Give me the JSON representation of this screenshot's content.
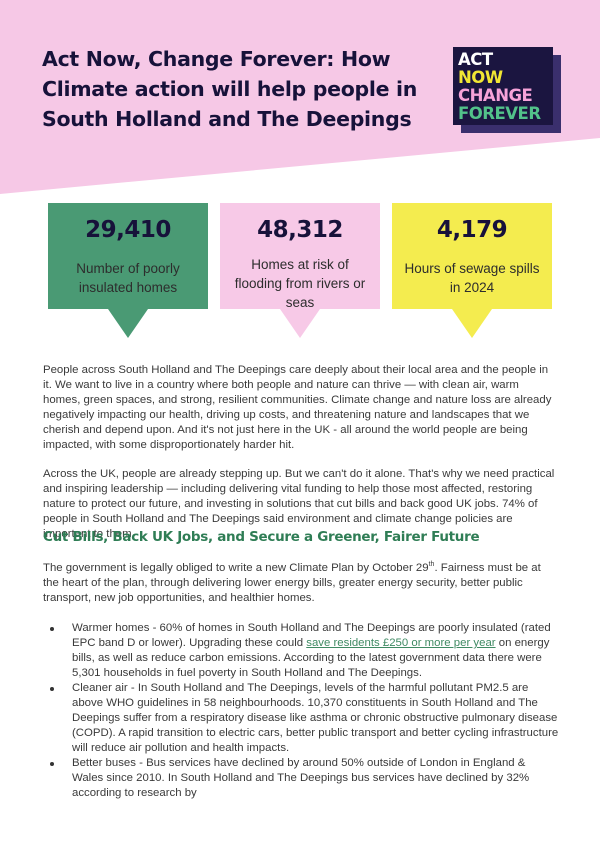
{
  "colors": {
    "pink_band": "#f6c8e6",
    "navy": "#17123a",
    "green_card": "#4a9a74",
    "pink_card": "#f7c9e7",
    "yellow_card": "#f4ec4f",
    "heading_green": "#2f7d55",
    "logo_white": "#ffffff",
    "logo_yellow": "#f1e634",
    "logo_pink": "#f6a2d9",
    "logo_green": "#52c28a"
  },
  "header": {
    "title": "Act Now, Change Forever: How Climate action will help people in South Holland and The Deepings"
  },
  "logo": {
    "line1": "ACT",
    "line2": "NOW",
    "line3": "CHANGE",
    "line4": "FOREVER"
  },
  "stats": [
    {
      "number": "29,410",
      "label": "Number of poorly insulated homes"
    },
    {
      "number": "48,312",
      "label": "Homes at risk of flooding from rivers or seas"
    },
    {
      "number": "4,179",
      "label": "Hours of sewage spills in 2024"
    }
  ],
  "intro": {
    "p1": "People across South Holland and The Deepings care deeply about their local area and the people in it. We want to live in a country where both people and nature can thrive — with clean air, warm homes, green spaces, and strong, resilient communities. Climate change and nature loss are already negatively impacting our health, driving up costs, and threatening nature and landscapes that we cherish and depend upon. And it's not just here in the UK - all around the world people are being impacted, with some disproportionately harder hit.",
    "p2": "Across the UK, people are already stepping up. But we can't do it alone. That's why we need practical and inspiring leadership — including delivering vital funding to help those most affected, restoring nature to protect our future, and investing in solutions that cut bills and back good UK jobs. 74% of people in South Holland and The Deepings said environment and climate change policies are important to them."
  },
  "section": {
    "heading": "Cut Bills, Back UK Jobs, and Secure a Greener, Fairer Future",
    "lead_a": "The government is legally obliged to write a new Climate Plan by October 29",
    "lead_sup": "th",
    "lead_b": ". Fairness must be at the heart of the plan, through delivering lower energy bills, greater energy security, better public transport, new job opportunities, and healthier homes.",
    "bullets": [
      {
        "term": "Warmer homes",
        "text_a": " - 60% of homes in South Holland and The Deepings are poorly insulated (rated EPC band D or lower). Upgrading these could ",
        "link": "save residents £250 or more per year",
        "text_b": " on energy bills, as well as reduce carbon emissions. According to the latest government data there were 5,301 households in fuel poverty in South Holland and The Deepings."
      },
      {
        "term": "Cleaner air",
        "text_a": " - In South Holland and The Deepings, levels of the harmful pollutant PM2.5 are above WHO guidelines in 58 neighbourhoods. 10,370 constituents in South Holland and The Deepings suffer from a respiratory disease like asthma or chronic obstructive pulmonary disease (COPD). A rapid transition to electric cars, better public transport and better cycling infrastructure will reduce air pollution and health impacts."
      },
      {
        "term": "Better buses",
        "text_a": " - Bus services have declined by around 50% outside of London in England & Wales since 2010. In South Holland and The Deepings bus services have declined by 32% according to research by"
      }
    ]
  }
}
